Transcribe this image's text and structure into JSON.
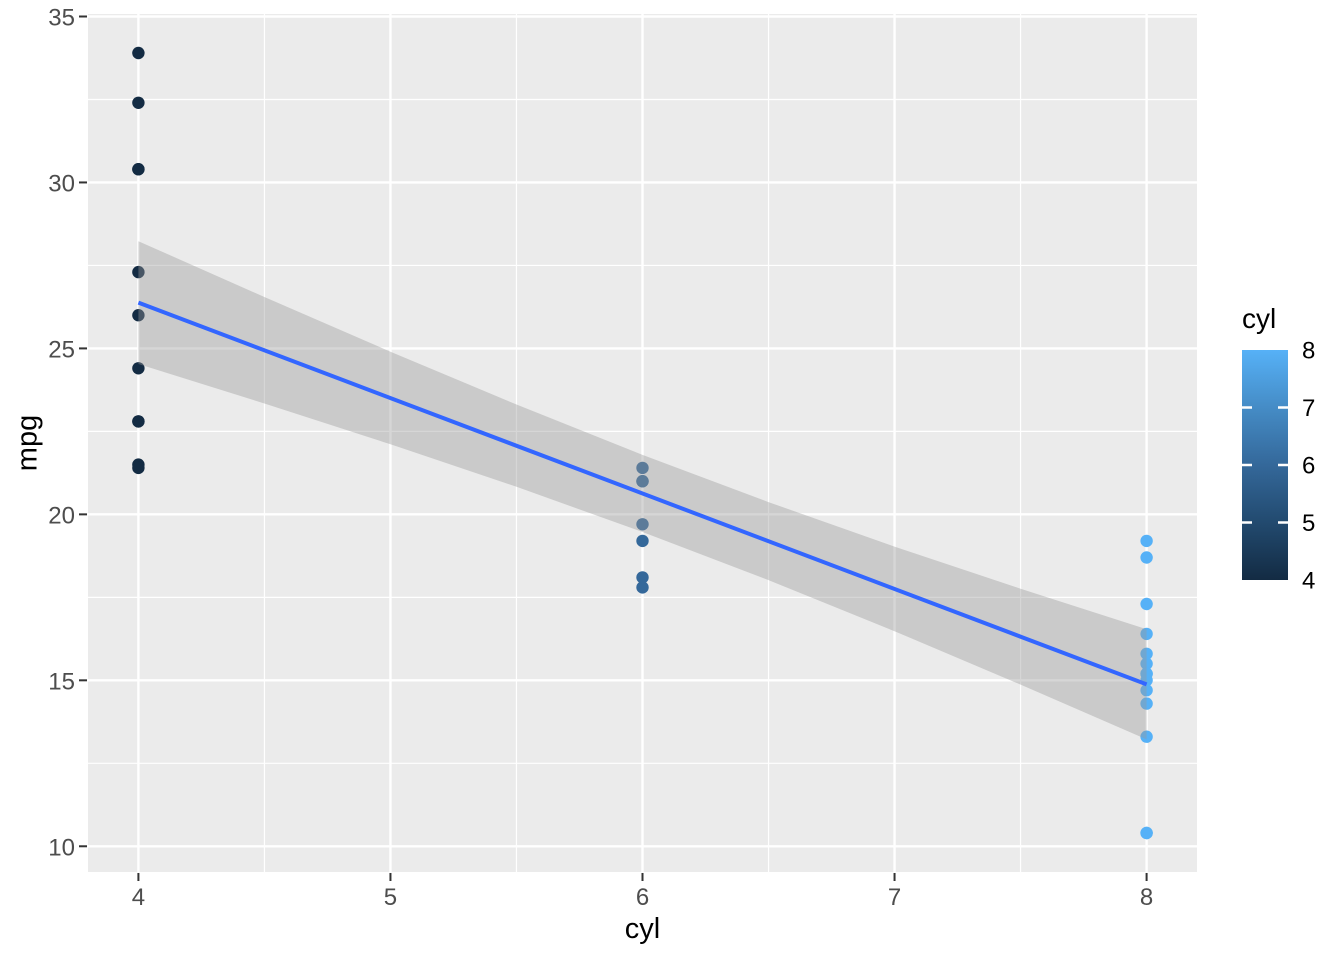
{
  "chart_data": {
    "type": "scatter",
    "title": "",
    "xlabel": "cyl",
    "ylabel": "mpg",
    "x_domain": [
      3.8,
      8.2
    ],
    "y_domain": [
      9.225,
      35.075
    ],
    "x_ticks": [
      4,
      5,
      6,
      7,
      8
    ],
    "x_tick_labels": [
      "4",
      "5",
      "6",
      "7",
      "8"
    ],
    "x_minor_ticks": [
      4.5,
      5.5,
      6.5,
      7.5
    ],
    "y_ticks": [
      10,
      15,
      20,
      25,
      30,
      35
    ],
    "y_tick_labels": [
      "10",
      "15",
      "20",
      "25",
      "30",
      "35"
    ],
    "y_minor_ticks": [
      12.5,
      17.5,
      22.5,
      27.5,
      32.5
    ],
    "grid": true,
    "legend_position": "right",
    "points": [
      {
        "cyl": 4,
        "mpg": 22.8
      },
      {
        "cyl": 4,
        "mpg": 24.4
      },
      {
        "cyl": 4,
        "mpg": 22.8
      },
      {
        "cyl": 4,
        "mpg": 32.4
      },
      {
        "cyl": 4,
        "mpg": 30.4
      },
      {
        "cyl": 4,
        "mpg": 33.9
      },
      {
        "cyl": 4,
        "mpg": 21.5
      },
      {
        "cyl": 4,
        "mpg": 27.3
      },
      {
        "cyl": 4,
        "mpg": 26.0
      },
      {
        "cyl": 4,
        "mpg": 30.4
      },
      {
        "cyl": 4,
        "mpg": 21.4
      },
      {
        "cyl": 6,
        "mpg": 21.0
      },
      {
        "cyl": 6,
        "mpg": 21.0
      },
      {
        "cyl": 6,
        "mpg": 21.4
      },
      {
        "cyl": 6,
        "mpg": 18.1
      },
      {
        "cyl": 6,
        "mpg": 19.2
      },
      {
        "cyl": 6,
        "mpg": 17.8
      },
      {
        "cyl": 6,
        "mpg": 19.7
      },
      {
        "cyl": 8,
        "mpg": 18.7
      },
      {
        "cyl": 8,
        "mpg": 14.3
      },
      {
        "cyl": 8,
        "mpg": 16.4
      },
      {
        "cyl": 8,
        "mpg": 17.3
      },
      {
        "cyl": 8,
        "mpg": 15.2
      },
      {
        "cyl": 8,
        "mpg": 10.4
      },
      {
        "cyl": 8,
        "mpg": 10.4
      },
      {
        "cyl": 8,
        "mpg": 14.7
      },
      {
        "cyl": 8,
        "mpg": 15.5
      },
      {
        "cyl": 8,
        "mpg": 15.2
      },
      {
        "cyl": 8,
        "mpg": 13.3
      },
      {
        "cyl": 8,
        "mpg": 19.2
      },
      {
        "cyl": 8,
        "mpg": 15.8
      },
      {
        "cyl": 8,
        "mpg": 15.0
      }
    ],
    "point_color_by_cyl": {
      "4": "#132B43",
      "6": "#34689A",
      "8": "#56B1F7"
    },
    "regression": {
      "method": "lm",
      "intercept": 37.8846,
      "slope": -2.8758,
      "x_start": 4,
      "x_end": 8,
      "line_color": "#3366FF"
    },
    "confidence_band": {
      "x": [
        4,
        4.5,
        5,
        5.5,
        6,
        6.5,
        7,
        7.5,
        8
      ],
      "upper": [
        28.23,
        26.55,
        24.9,
        23.31,
        21.79,
        20.37,
        19.03,
        17.76,
        16.54
      ],
      "lower": [
        24.53,
        23.34,
        22.11,
        20.83,
        19.47,
        18.02,
        16.48,
        14.87,
        13.22
      ],
      "fill": "rgba(153,153,153,0.4)"
    },
    "legend": {
      "title": "cyl",
      "type": "colorbar",
      "value_top": 8,
      "value_bottom": 4,
      "tick_values": [
        8,
        7,
        6,
        5,
        4
      ],
      "tick_labels": [
        "8",
        "7",
        "6",
        "5",
        "4"
      ],
      "gradient_stops": [
        {
          "offset": 0,
          "color": "#56B1F7"
        },
        {
          "offset": 0.25,
          "color": "#458CC6"
        },
        {
          "offset": 0.5,
          "color": "#34689A"
        },
        {
          "offset": 0.75,
          "color": "#224A6F"
        },
        {
          "offset": 1,
          "color": "#132B43"
        }
      ]
    }
  },
  "style": {
    "panel_background": "#EBEBEB",
    "grid_color": "#FFFFFF",
    "axis_tick_color": "#333333",
    "axis_tick_label_color": "#4D4D4D",
    "axis_title_color": "#000000",
    "legend_tick_color": "#FFFFFF",
    "legend_label_color": "#000000"
  }
}
